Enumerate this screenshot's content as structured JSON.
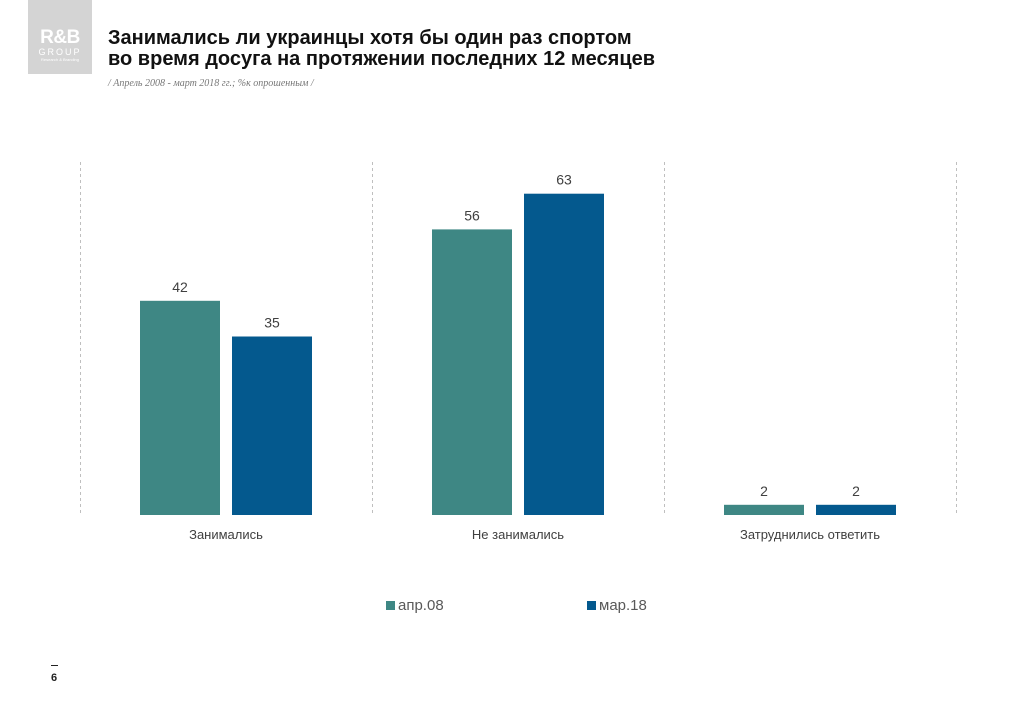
{
  "logo": {
    "line1": "R&B",
    "line2": "GROUP",
    "line3": "Research & Branding"
  },
  "header": {
    "title_line1": "Занимались ли украинцы хотя бы один раз спортом",
    "title_line2": "во время досуга на протяжении последних 12 месяцев",
    "subtitle": "/ Апрель 2008 - март 2018 гг.; %к опрошенным /"
  },
  "page_number": "6",
  "colors": {
    "apr08": "#3e8784",
    "mar18": "#04598e"
  },
  "chart_data": {
    "type": "bar",
    "title": "Занимались ли украинцы хотя бы один раз спортом во время досуга на протяжении последних 12 месяцев",
    "categories": [
      "Занимались",
      "Не занимались",
      "Затруднились ответить"
    ],
    "series": [
      {
        "name": "апр.08",
        "values": [
          42,
          56,
          2
        ]
      },
      {
        "name": "мар.18",
        "values": [
          35,
          63,
          2
        ]
      }
    ],
    "ylim": [
      0,
      70
    ],
    "grid": false,
    "legend_position": "bottom"
  }
}
